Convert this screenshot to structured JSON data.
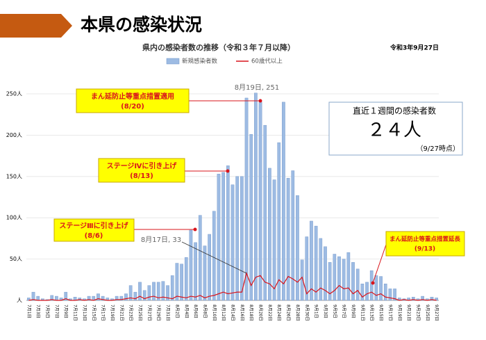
{
  "header": {
    "title": "本県の感染状況"
  },
  "chart_data": {
    "type": "bar",
    "title": "県内の感染者数の推移（令和３年７月以降）",
    "date": "令和3年9月27日",
    "categories": [
      "7月1日",
      null,
      "7月3日",
      null,
      "7月5日",
      null,
      "7月7日",
      null,
      "7月9日",
      null,
      "7月11日",
      null,
      "7月13日",
      null,
      "7月15日",
      null,
      "7月17日",
      null,
      "7月19日",
      null,
      "7月21日",
      null,
      "7月23日",
      null,
      "7月25日",
      null,
      "7月27日",
      null,
      "7月29日",
      null,
      "7月31日",
      null,
      "8月2日",
      null,
      "8月4日",
      null,
      "8月6日",
      null,
      "8月8日",
      null,
      "8月10日",
      null,
      "8月12日",
      null,
      "8月14日",
      null,
      "8月16日",
      null,
      "8月18日",
      null,
      "8月20日",
      null,
      "8月22日",
      null,
      "8月24日",
      null,
      "8月26日",
      null,
      "8月28日",
      null,
      "8月30日",
      null,
      "9月1日",
      null,
      "9月3日",
      null,
      "9月5日",
      null,
      "9月7日",
      null,
      "9月9日",
      null,
      "9月11日",
      null,
      "9月13日",
      null,
      "9月15日",
      null,
      "9月17日",
      null,
      "9月19日",
      null,
      "9月21日",
      null,
      "9月23日",
      null,
      "9月25日",
      null,
      "9月27日"
    ],
    "series": [
      {
        "name": "新規感染者数",
        "type": "bar",
        "color": "#9dbbe3",
        "values": [
          3,
          10,
          5,
          2,
          1,
          6,
          5,
          3,
          10,
          2,
          4,
          3,
          2,
          5,
          5,
          8,
          5,
          3,
          2,
          5,
          5,
          8,
          18,
          10,
          22,
          12,
          18,
          22,
          22,
          23,
          18,
          30,
          45,
          44,
          52,
          85,
          70,
          103,
          66,
          80,
          108,
          153,
          155,
          163,
          140,
          150,
          150,
          245,
          201,
          251,
          240,
          212,
          160,
          146,
          191,
          240,
          148,
          157,
          127,
          49,
          77,
          96,
          90,
          75,
          65,
          46,
          56,
          53,
          50,
          58,
          46,
          38,
          20,
          22,
          36,
          30,
          29,
          20,
          14,
          14,
          3,
          2,
          3,
          4,
          2,
          5,
          2,
          4,
          3
        ]
      },
      {
        "name": "60歳代以上",
        "type": "line",
        "color": "#d9141b",
        "values": [
          0,
          1,
          0,
          0,
          0,
          1,
          0,
          0,
          2,
          0,
          0,
          1,
          0,
          1,
          0,
          2,
          1,
          0,
          0,
          1,
          1,
          2,
          3,
          2,
          5,
          2,
          4,
          5,
          3,
          4,
          3,
          2,
          5,
          4,
          3,
          5,
          4,
          6,
          3,
          5,
          6,
          8,
          10,
          8,
          9,
          10,
          10,
          33,
          18,
          28,
          30,
          22,
          20,
          14,
          25,
          20,
          29,
          26,
          22,
          28,
          8,
          14,
          10,
          15,
          12,
          8,
          12,
          18,
          14,
          15,
          8,
          12,
          4,
          8,
          10,
          6,
          8,
          4,
          3,
          2,
          0,
          1,
          0,
          1,
          0,
          1,
          0,
          1,
          0
        ]
      }
    ],
    "ylim": [
      0,
      250
    ],
    "yticks": [
      {
        "value": 0,
        "label": "人"
      },
      {
        "value": 50,
        "label": "50人"
      },
      {
        "value": 100,
        "label": "100人"
      },
      {
        "value": 150,
        "label": "150人"
      },
      {
        "value": 200,
        "label": "200人"
      },
      {
        "value": 250,
        "label": "250人"
      }
    ],
    "legend": "top",
    "point_labels": [
      "8月19日, 251",
      "8月17日, 33"
    ],
    "annotations": [
      {
        "lines": [
          "まん延防止等重点措置適用",
          "(8/20)"
        ]
      },
      {
        "lines": [
          "ステージⅣに引き上げ",
          "(8/13)"
        ]
      },
      {
        "lines": [
          "ステージⅢに引き上げ",
          "(8/6)"
        ]
      },
      {
        "lines": [
          "まん延防止等重点措置延長",
          "(9/13)"
        ]
      }
    ]
  },
  "info_box": {
    "title": "直近１週間の感染者数",
    "value": "２４人",
    "note": "（9/27時点）"
  }
}
